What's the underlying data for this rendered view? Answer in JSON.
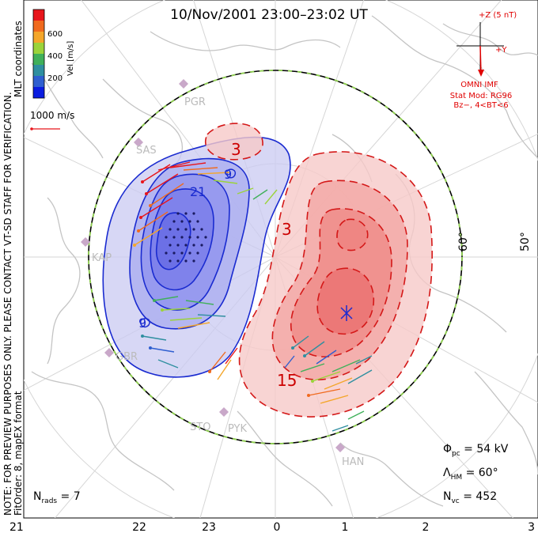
{
  "title": "10/Nov/2001 23:00–23:02 UT",
  "colorbar": {
    "label": "Vel [m/s]",
    "ticks": [
      "600",
      "400",
      "200"
    ],
    "colors": [
      "#e8151b",
      "#f06a1e",
      "#f4a62a",
      "#9bd33a",
      "#40b05a",
      "#2f8fa0",
      "#2f5fd0",
      "#0a1ce0"
    ]
  },
  "scale_vector": "1000 m/s",
  "imf": {
    "z_label": "+Z (5 nT)",
    "y_label": "+Y",
    "source": "OMNI IMF",
    "model_line1": "Stat Mod: RG96",
    "model_line2": "Bz−, 4<BT<6"
  },
  "side_text": {
    "line1": "NOTE: FOR PREVIEW PURPOSES ONLY. PLEASE CONTACT VT-SD STAFF FOR VERIFICATION.",
    "line2": "FitOrder: 8, mapEX format",
    "line3": "MLT coordinates"
  },
  "mlt_ticks": [
    "21",
    "22",
    "23",
    "0",
    "1",
    "2",
    "3"
  ],
  "latitude_labels": [
    "60°",
    "50°"
  ],
  "stations": [
    "PGR",
    "SAS",
    "KAP",
    "GBR",
    "STO",
    "PYK",
    "HAN"
  ],
  "contour_labels": [
    "3",
    "3",
    "15",
    "9",
    "21",
    "9"
  ],
  "info": {
    "phi_pc": "Φ",
    "phi_sub": "pc",
    "phi_value": " = 54 kV",
    "lambda": "Λ",
    "lambda_sub": "HM",
    "lambda_value": " = 60°",
    "nvc": "N",
    "nvc_sub": "vc",
    "nvc_value": " = 452",
    "nrads": "N",
    "nrads_sub": "rads",
    "nrads_value": " = 7"
  },
  "colors": {
    "negative_fill": "#8c8ff0",
    "negative_line": "#1a2bd0",
    "positive_fill": "#f07a78",
    "positive_line": "#d41818",
    "hmb_dash": "#8fd14f",
    "coast": "#c8c8c8",
    "grid": "#d0d0d0",
    "station": "#c9a8c9"
  }
}
